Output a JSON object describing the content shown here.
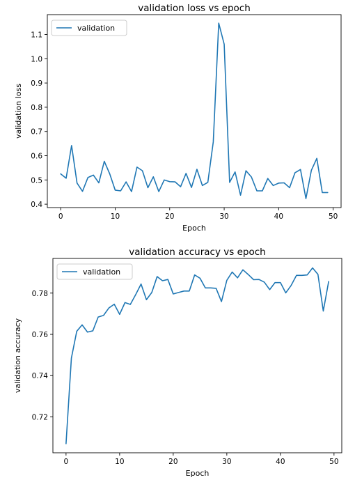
{
  "charts": [
    {
      "title": "validation loss vs epoch",
      "xlabel": "Epoch",
      "ylabel": "validation loss",
      "legend": "validation",
      "xticks": [
        "0",
        "10",
        "20",
        "30",
        "40",
        "50"
      ],
      "yticks": [
        "0.4",
        "0.5",
        "0.6",
        "0.7",
        "0.8",
        "0.9",
        "1.0",
        "1.1"
      ]
    },
    {
      "title": "validation accuracy vs epoch",
      "xlabel": "Epoch",
      "ylabel": "validation accuracy",
      "legend": "validation",
      "xticks": [
        "0",
        "10",
        "20",
        "30",
        "40",
        "50"
      ],
      "yticks": [
        "0.72",
        "0.74",
        "0.76",
        "0.78"
      ]
    }
  ],
  "chart_data": [
    {
      "type": "line",
      "title": "validation loss vs epoch",
      "xlabel": "Epoch",
      "ylabel": "validation loss",
      "xlim": [
        -2.45,
        51.45
      ],
      "ylim": [
        0.386,
        1.182
      ],
      "xticks": [
        0,
        10,
        20,
        30,
        40,
        50
      ],
      "yticks": [
        0.4,
        0.5,
        0.6,
        0.7,
        0.8,
        0.9,
        1.0,
        1.1
      ],
      "grid": false,
      "legend_position": "top-left",
      "color": "#1f77b4",
      "series": [
        {
          "name": "validation",
          "x": [
            0,
            1,
            2,
            3,
            4,
            5,
            6,
            7,
            8,
            9,
            10,
            11,
            12,
            13,
            14,
            15,
            16,
            17,
            18,
            19,
            20,
            21,
            22,
            23,
            24,
            25,
            26,
            27,
            28,
            29,
            30,
            31,
            32,
            33,
            34,
            35,
            36,
            37,
            38,
            39,
            40,
            41,
            42,
            43,
            44,
            45,
            46,
            47,
            48,
            49
          ],
          "values": [
            0.525,
            0.507,
            0.642,
            0.487,
            0.453,
            0.51,
            0.52,
            0.488,
            0.577,
            0.525,
            0.458,
            0.455,
            0.492,
            0.452,
            0.553,
            0.538,
            0.468,
            0.513,
            0.452,
            0.5,
            0.493,
            0.492,
            0.472,
            0.527,
            0.469,
            0.544,
            0.477,
            0.49,
            0.657,
            1.147,
            1.06,
            0.49,
            0.533,
            0.437,
            0.538,
            0.512,
            0.455,
            0.455,
            0.506,
            0.477,
            0.487,
            0.488,
            0.468,
            0.53,
            0.543,
            0.423,
            0.54,
            0.589,
            0.448,
            0.448
          ]
        }
      ]
    },
    {
      "type": "line",
      "title": "validation accuracy vs epoch",
      "xlabel": "Epoch",
      "ylabel": "validation accuracy",
      "xlim": [
        -2.45,
        51.45
      ],
      "ylim": [
        0.7026,
        0.7968
      ],
      "xticks": [
        0,
        10,
        20,
        30,
        40,
        50
      ],
      "yticks": [
        0.72,
        0.74,
        0.76,
        0.78
      ],
      "grid": false,
      "legend_position": "top-left",
      "color": "#1f77b4",
      "series": [
        {
          "name": "validation",
          "x": [
            0,
            1,
            2,
            3,
            4,
            5,
            6,
            7,
            8,
            9,
            10,
            11,
            12,
            13,
            14,
            15,
            16,
            17,
            18,
            19,
            20,
            21,
            22,
            23,
            24,
            25,
            26,
            27,
            28,
            29,
            30,
            31,
            32,
            33,
            34,
            35,
            36,
            37,
            38,
            39,
            40,
            41,
            42,
            43,
            44,
            45,
            46,
            47,
            48,
            49
          ],
          "values": [
            0.707,
            0.7485,
            0.7615,
            0.7646,
            0.7611,
            0.7617,
            0.7684,
            0.7692,
            0.7728,
            0.7746,
            0.7697,
            0.7754,
            0.7745,
            0.7793,
            0.7844,
            0.7768,
            0.7803,
            0.788,
            0.786,
            0.7866,
            0.7796,
            0.7803,
            0.781,
            0.781,
            0.7888,
            0.7872,
            0.7825,
            0.7825,
            0.7823,
            0.7759,
            0.7862,
            0.7902,
            0.7874,
            0.7913,
            0.789,
            0.7865,
            0.7866,
            0.7853,
            0.7817,
            0.7851,
            0.7851,
            0.7801,
            0.7837,
            0.7886,
            0.7886,
            0.7888,
            0.7922,
            0.7891,
            0.7713,
            0.7856
          ]
        }
      ]
    }
  ]
}
